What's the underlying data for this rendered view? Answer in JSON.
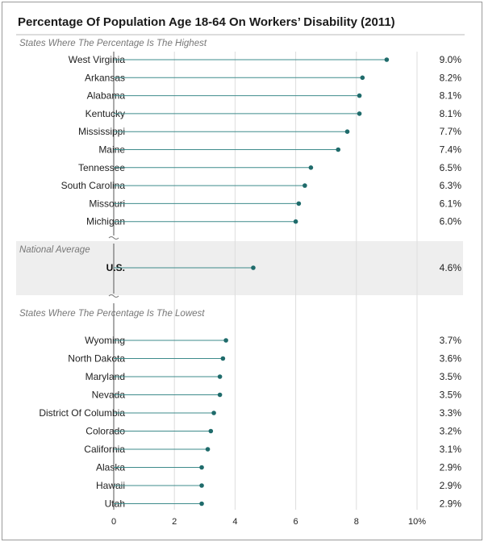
{
  "chart_data": {
    "type": "lollipop",
    "title": "Percentage Of Population Age 18-64 On Workers’ Disability (2011)",
    "x_ticks": [
      "0",
      "2",
      "4",
      "6",
      "8",
      "10%"
    ],
    "xlim": [
      0,
      10
    ],
    "grid": true,
    "colors": {
      "stem": "#3e8b8b",
      "dot": "#1f6b6b",
      "band": "#eeeeee",
      "grid": "#dddddd",
      "border": "#9a9a9a"
    },
    "groups": [
      {
        "heading": "States Where The Percentage Is The Highest",
        "items": [
          {
            "label": "West Virginia",
            "value": 9.0,
            "display": "9.0%"
          },
          {
            "label": "Arkansas",
            "value": 8.2,
            "display": "8.2%"
          },
          {
            "label": "Alabama",
            "value": 8.1,
            "display": "8.1%"
          },
          {
            "label": "Kentucky",
            "value": 8.1,
            "display": "8.1%"
          },
          {
            "label": "Mississippi",
            "value": 7.7,
            "display": "7.7%"
          },
          {
            "label": "Maine",
            "value": 7.4,
            "display": "7.4%"
          },
          {
            "label": "Tennessee",
            "value": 6.5,
            "display": "6.5%"
          },
          {
            "label": "South Carolina",
            "value": 6.3,
            "display": "6.3%"
          },
          {
            "label": "Missouri",
            "value": 6.1,
            "display": "6.1%"
          },
          {
            "label": "Michigan",
            "value": 6.0,
            "display": "6.0%"
          }
        ]
      },
      {
        "heading": "National Average",
        "items": [
          {
            "label": "U.S.",
            "value": 4.6,
            "display": "4.6%"
          }
        ]
      },
      {
        "heading": "States Where The Percentage Is The Lowest",
        "items": [
          {
            "label": "Wyoming",
            "value": 3.7,
            "display": "3.7%"
          },
          {
            "label": "North Dakota",
            "value": 3.6,
            "display": "3.6%"
          },
          {
            "label": "Maryland",
            "value": 3.5,
            "display": "3.5%"
          },
          {
            "label": "Nevada",
            "value": 3.5,
            "display": "3.5%"
          },
          {
            "label": "District Of Columbia",
            "value": 3.3,
            "display": "3.3%"
          },
          {
            "label": "Colorado",
            "value": 3.2,
            "display": "3.2%"
          },
          {
            "label": "California",
            "value": 3.1,
            "display": "3.1%"
          },
          {
            "label": "Alaska",
            "value": 2.9,
            "display": "2.9%"
          },
          {
            "label": "Hawaii",
            "value": 2.9,
            "display": "2.9%"
          },
          {
            "label": "Utah",
            "value": 2.9,
            "display": "2.9%"
          }
        ]
      }
    ]
  }
}
